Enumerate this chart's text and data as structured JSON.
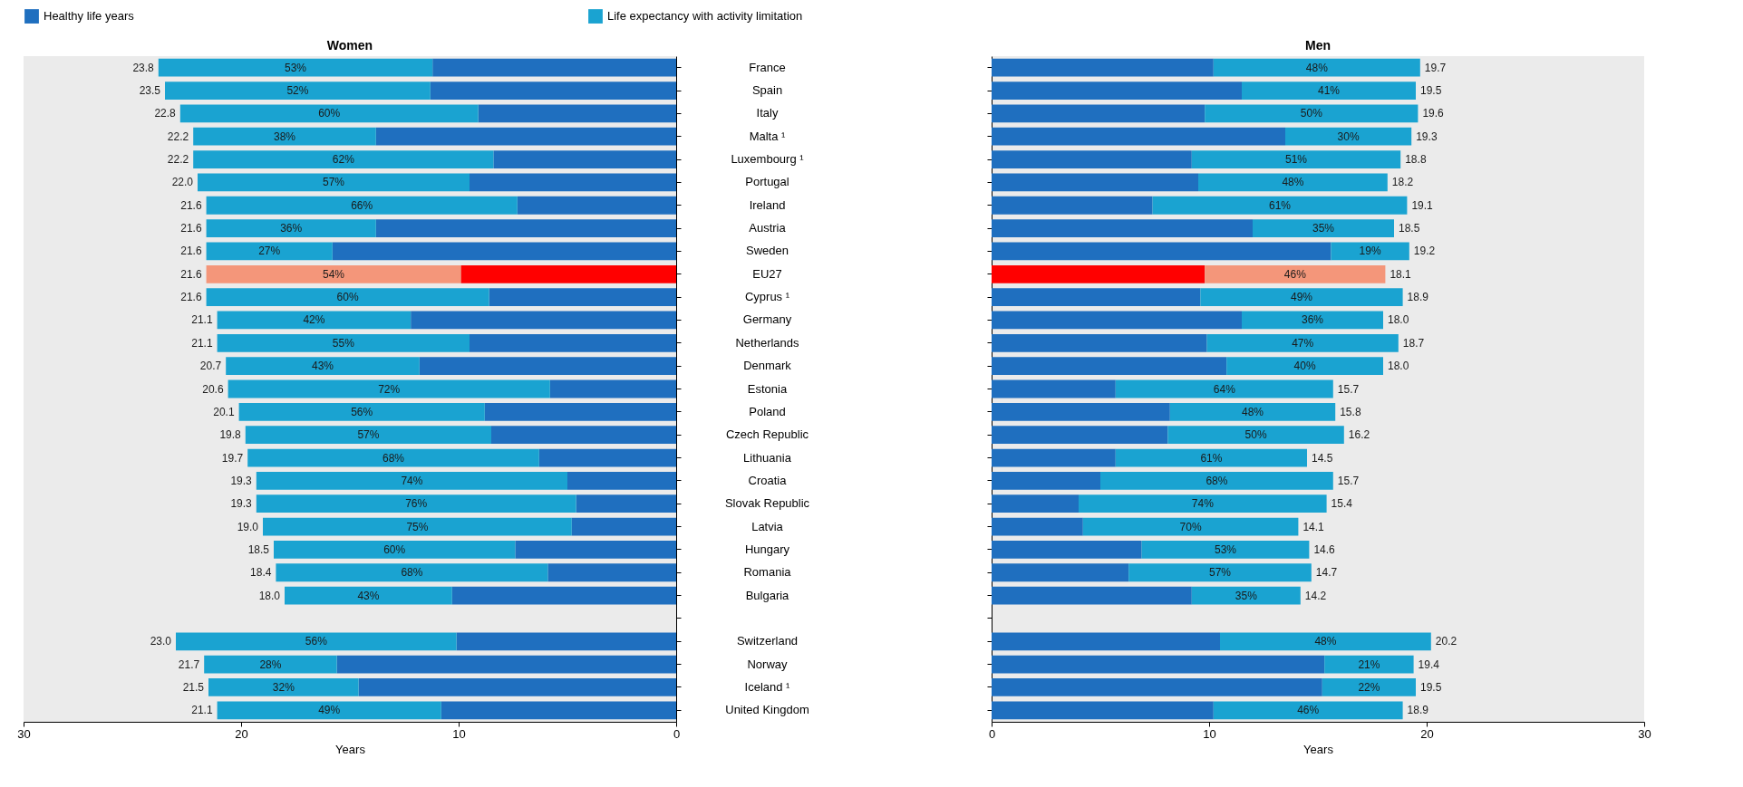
{
  "chart_data": [
    {
      "type": "bar",
      "title": "Women",
      "xlabel": "Years",
      "orientation": "horizontal",
      "stacked": true,
      "legend": "top",
      "xlim": [
        30,
        0
      ],
      "xticks": [
        0,
        10,
        20,
        30
      ],
      "categories": [
        "France",
        "Spain",
        "Italy",
        "Malta ¹",
        "Luxembourg ¹",
        "Portugal",
        "Ireland",
        "Austria",
        "Sweden",
        "EU27",
        "Cyprus ¹",
        "Germany",
        "Netherlands",
        "Denmark",
        "Estonia",
        "Poland",
        "Czech Republic",
        "Lithuania",
        "Croatia",
        "Slovak Republic",
        "Latvia",
        "Hungary",
        "Romania",
        "Bulgaria",
        null,
        "Switzerland",
        "Norway",
        "Iceland ¹",
        "United Kingdom"
      ],
      "series": [
        {
          "name": "Healthy life years",
          "color": "#1f6fbf",
          "colors": [
            "#1f6fbf",
            "#1f6fbf",
            "#1f6fbf",
            "#1f6fbf",
            "#1f6fbf",
            "#1f6fbf",
            "#1f6fbf",
            "#1f6fbf",
            "#1f6fbf",
            "#ff0000",
            "#1f6fbf",
            "#1f6fbf",
            "#1f6fbf",
            "#1f6fbf",
            "#1f6fbf",
            "#1f6fbf",
            "#1f6fbf",
            "#1f6fbf",
            "#1f6fbf",
            "#1f6fbf",
            "#1f6fbf",
            "#1f6fbf",
            "#1f6fbf",
            "#1f6fbf",
            null,
            "#1f6fbf",
            "#1f6fbf",
            "#1f6fbf",
            "#1f6fbf"
          ],
          "values": [
            11.2,
            11.3,
            9.1,
            13.8,
            8.4,
            9.5,
            7.3,
            13.8,
            15.8,
            9.9,
            8.6,
            12.2,
            9.5,
            11.8,
            5.8,
            8.8,
            8.5,
            6.3,
            5.0,
            4.6,
            4.8,
            7.4,
            5.9,
            10.3,
            null,
            10.1,
            15.6,
            14.6,
            10.8
          ]
        },
        {
          "name": "Life expectancy with activity limitation",
          "color": "#1aa3d1",
          "colors": [
            "#1aa3d1",
            "#1aa3d1",
            "#1aa3d1",
            "#1aa3d1",
            "#1aa3d1",
            "#1aa3d1",
            "#1aa3d1",
            "#1aa3d1",
            "#1aa3d1",
            "#f4967a",
            "#1aa3d1",
            "#1aa3d1",
            "#1aa3d1",
            "#1aa3d1",
            "#1aa3d1",
            "#1aa3d1",
            "#1aa3d1",
            "#1aa3d1",
            "#1aa3d1",
            "#1aa3d1",
            "#1aa3d1",
            "#1aa3d1",
            "#1aa3d1",
            "#1aa3d1",
            null,
            "#1aa3d1",
            "#1aa3d1",
            "#1aa3d1",
            "#1aa3d1"
          ],
          "values": [
            12.6,
            12.2,
            13.7,
            8.4,
            13.8,
            12.5,
            14.3,
            7.8,
            5.8,
            11.7,
            13.0,
            8.9,
            11.6,
            8.9,
            14.8,
            11.3,
            11.3,
            13.4,
            14.3,
            14.7,
            14.2,
            11.1,
            12.5,
            7.7,
            null,
            12.9,
            6.1,
            6.9,
            10.3
          ]
        }
      ],
      "annotations": [
        "53%",
        "52%",
        "60%",
        "38%",
        "62%",
        "57%",
        "66%",
        "36%",
        "27%",
        "54%",
        "60%",
        "42%",
        "55%",
        "43%",
        "72%",
        "56%",
        "57%",
        "68%",
        "74%",
        "76%",
        "75%",
        "60%",
        "68%",
        "43%",
        "56%",
        "28%",
        "32%",
        "49%"
      ],
      "totals": [
        "23.8",
        "23.5",
        "22.8",
        "22.2",
        "22.2",
        "22.0",
        "21.6",
        "21.6",
        "21.6",
        "21.6",
        "21.6",
        "21.1",
        "21.1",
        "20.7",
        "20.6",
        "20.1",
        "19.8",
        "19.7",
        "19.3",
        "19.3",
        "19.0",
        "18.5",
        "18.4",
        "18.0",
        null,
        "23.0",
        "21.7",
        "21.5",
        "21.1"
      ]
    },
    {
      "type": "bar",
      "title": "Men",
      "xlabel": "Years",
      "orientation": "horizontal",
      "stacked": true,
      "legend": "top",
      "tick_labels": "x",
      "xlim": [
        0,
        30
      ],
      "xticks": [
        0,
        10,
        20,
        30
      ],
      "categories": [
        "France",
        "Spain",
        "Italy",
        "Malta ¹",
        "Luxembourg ¹",
        "Portugal",
        "Ireland",
        "Austria",
        "Sweden",
        "EU27",
        "Cyprus ¹",
        "Germany",
        "Netherlands",
        "Denmark",
        "Estonia",
        "Poland",
        "Czech Republic",
        "Lithuania",
        "Croatia",
        "Slovak Republic",
        "Latvia",
        "Hungary",
        "Romania",
        "Bulgaria",
        null,
        "Switzerland",
        "Norway",
        "Iceland ¹",
        "United Kingdom"
      ],
      "series": [
        {
          "name": "Healthy life years",
          "color": "#1f6fbf",
          "colors": [
            "#1f6fbf",
            "#1f6fbf",
            "#1f6fbf",
            "#1f6fbf",
            "#1f6fbf",
            "#1f6fbf",
            "#1f6fbf",
            "#1f6fbf",
            "#1f6fbf",
            "#ff0000",
            "#1f6fbf",
            "#1f6fbf",
            "#1f6fbf",
            "#1f6fbf",
            "#1f6fbf",
            "#1f6fbf",
            "#1f6fbf",
            "#1f6fbf",
            "#1f6fbf",
            "#1f6fbf",
            "#1f6fbf",
            "#1f6fbf",
            "#1f6fbf",
            "#1f6fbf",
            null,
            "#1f6fbf",
            "#1f6fbf",
            "#1f6fbf",
            "#1f6fbf"
          ],
          "values": [
            10.2,
            11.5,
            9.8,
            13.5,
            9.2,
            9.5,
            7.4,
            12.0,
            15.6,
            9.8,
            9.6,
            11.5,
            9.9,
            10.8,
            5.7,
            8.2,
            8.1,
            5.7,
            5.0,
            4.0,
            4.2,
            6.9,
            6.3,
            9.2,
            null,
            10.5,
            15.3,
            15.2,
            10.2
          ]
        },
        {
          "name": "Life expectancy with activity limitation",
          "color": "#1aa3d1",
          "colors": [
            "#1aa3d1",
            "#1aa3d1",
            "#1aa3d1",
            "#1aa3d1",
            "#1aa3d1",
            "#1aa3d1",
            "#1aa3d1",
            "#1aa3d1",
            "#1aa3d1",
            "#f4967a",
            "#1aa3d1",
            "#1aa3d1",
            "#1aa3d1",
            "#1aa3d1",
            "#1aa3d1",
            "#1aa3d1",
            "#1aa3d1",
            "#1aa3d1",
            "#1aa3d1",
            "#1aa3d1",
            "#1aa3d1",
            "#1aa3d1",
            "#1aa3d1",
            "#1aa3d1",
            null,
            "#1aa3d1",
            "#1aa3d1",
            "#1aa3d1",
            "#1aa3d1"
          ],
          "values": [
            9.5,
            8.0,
            9.8,
            5.8,
            9.6,
            8.7,
            11.7,
            6.5,
            3.6,
            8.3,
            9.3,
            6.5,
            8.8,
            7.2,
            10.0,
            7.6,
            8.1,
            8.8,
            10.7,
            11.4,
            9.9,
            7.7,
            8.4,
            5.0,
            null,
            9.7,
            4.1,
            4.3,
            8.7
          ]
        }
      ],
      "annotations": [
        "48%",
        "41%",
        "50%",
        "30%",
        "51%",
        "48%",
        "61%",
        "35%",
        "19%",
        "46%",
        "49%",
        "36%",
        "47%",
        "40%",
        "64%",
        "48%",
        "50%",
        "61%",
        "68%",
        "74%",
        "70%",
        "53%",
        "57%",
        "35%",
        "48%",
        "21%",
        "22%",
        "46%"
      ],
      "totals": [
        "19.7",
        "19.5",
        "19.6",
        "19.3",
        "18.8",
        "18.2",
        "19.1",
        "18.5",
        "19.2",
        "18.1",
        "18.9",
        "18.0",
        "18.7",
        "18.0",
        "15.7",
        "15.8",
        "16.2",
        "14.5",
        "15.7",
        "15.4",
        "14.1",
        "14.6",
        "14.7",
        "14.2",
        null,
        "20.2",
        "19.4",
        "19.5",
        "18.9"
      ]
    }
  ]
}
